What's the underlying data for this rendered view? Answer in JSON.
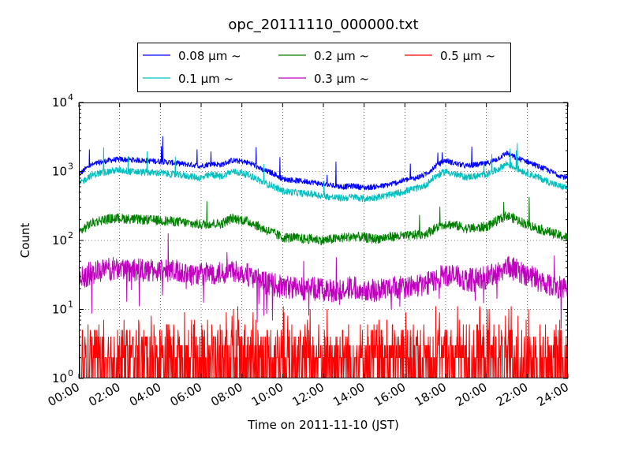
{
  "chart_data": {
    "type": "line",
    "title": "opc_20111110_000000.txt",
    "xlabel": "Time on 2011-11-10 (JST)",
    "ylabel": "Count",
    "yscale": "log",
    "xlim": [
      0,
      24
    ],
    "ylim": [
      1,
      10000
    ],
    "grid": true,
    "legend_position": "top-center",
    "x_unit": "hour",
    "x_ticks": [
      "00:00",
      "02:00",
      "04:00",
      "06:00",
      "08:00",
      "10:00",
      "12:00",
      "14:00",
      "16:00",
      "18:00",
      "20:00",
      "22:00",
      "24:00"
    ],
    "y_ticks": [
      {
        "base": "10",
        "exp": "0",
        "value": 1
      },
      {
        "base": "10",
        "exp": "1",
        "value": 10
      },
      {
        "base": "10",
        "exp": "2",
        "value": 100
      },
      {
        "base": "10",
        "exp": "3",
        "value": 1000
      },
      {
        "base": "10",
        "exp": "4",
        "value": 10000
      }
    ],
    "legend_suffix": "μm ~",
    "series": [
      {
        "name": "0.08",
        "color": "#0000ff",
        "noise": 0.04,
        "x": [
          0,
          0.5,
          1,
          1.5,
          2,
          2.5,
          3,
          4,
          5,
          5.5,
          6,
          6.5,
          7,
          7.5,
          8,
          8.5,
          9,
          9.5,
          10,
          10.5,
          11,
          11.5,
          12,
          12.5,
          13,
          13.5,
          14,
          14.5,
          15,
          15.5,
          16,
          16.5,
          17,
          17.5,
          18,
          18.5,
          19,
          19.5,
          20,
          20.5,
          21,
          21.5,
          22,
          22.5,
          23,
          23.5,
          24
        ],
        "values": [
          900,
          1200,
          1350,
          1450,
          1500,
          1480,
          1450,
          1400,
          1300,
          1250,
          1200,
          1300,
          1250,
          1450,
          1400,
          1300,
          1050,
          950,
          780,
          750,
          720,
          700,
          650,
          620,
          600,
          620,
          580,
          600,
          620,
          680,
          750,
          800,
          900,
          1200,
          1450,
          1300,
          1200,
          1250,
          1300,
          1500,
          1850,
          1550,
          1400,
          1200,
          1050,
          900,
          800
        ]
      },
      {
        "name": "0.1",
        "color": "#00bfbf",
        "noise": 0.05,
        "x": [
          0,
          0.5,
          1,
          1.5,
          2,
          2.5,
          3,
          4,
          5,
          5.5,
          6,
          6.5,
          7,
          7.5,
          8,
          8.5,
          9,
          9.5,
          10,
          10.5,
          11,
          11.5,
          12,
          12.5,
          13,
          13.5,
          14,
          14.5,
          15,
          15.5,
          16,
          16.5,
          17,
          17.5,
          18,
          18.5,
          19,
          19.5,
          20,
          20.5,
          21,
          21.5,
          22,
          22.5,
          23,
          23.5,
          24
        ],
        "values": [
          650,
          850,
          950,
          1000,
          1050,
          1000,
          980,
          950,
          880,
          850,
          800,
          900,
          850,
          1000,
          950,
          850,
          700,
          620,
          520,
          500,
          480,
          470,
          440,
          420,
          410,
          430,
          400,
          420,
          440,
          470,
          520,
          560,
          630,
          850,
          1000,
          900,
          830,
          860,
          900,
          1050,
          1300,
          1100,
          950,
          830,
          720,
          620,
          580
        ]
      },
      {
        "name": "0.2",
        "color": "#008000",
        "noise": 0.07,
        "x": [
          0,
          0.5,
          1,
          1.5,
          2,
          2.5,
          3,
          4,
          5,
          5.5,
          6,
          6.5,
          7,
          7.5,
          8,
          8.5,
          9,
          9.5,
          10,
          10.5,
          11,
          11.5,
          12,
          12.5,
          13,
          13.5,
          14,
          14.5,
          15,
          15.5,
          16,
          16.5,
          17,
          17.5,
          18,
          18.5,
          19,
          19.5,
          20,
          20.5,
          21,
          21.5,
          22,
          22.5,
          23,
          23.5,
          24
        ],
        "values": [
          130,
          170,
          195,
          205,
          210,
          205,
          200,
          195,
          185,
          175,
          170,
          175,
          175,
          210,
          200,
          180,
          150,
          130,
          110,
          110,
          105,
          105,
          100,
          105,
          110,
          115,
          110,
          105,
          110,
          115,
          115,
          120,
          125,
          150,
          175,
          165,
          150,
          150,
          160,
          190,
          230,
          200,
          170,
          150,
          135,
          120,
          110
        ]
      },
      {
        "name": "0.3",
        "color": "#bf00bf",
        "noise": 0.17,
        "x": [
          0,
          0.5,
          1,
          1.5,
          2,
          2.5,
          3,
          4,
          5,
          5.5,
          6,
          6.5,
          7,
          7.5,
          8,
          8.5,
          9,
          9.5,
          10,
          10.5,
          11,
          11.5,
          12,
          12.5,
          13,
          13.5,
          14,
          14.5,
          15,
          15.5,
          16,
          16.5,
          17,
          17.5,
          18,
          18.5,
          19,
          19.5,
          20,
          20.5,
          21,
          21.5,
          22,
          22.5,
          23,
          23.5,
          24
        ],
        "values": [
          27,
          33,
          36,
          38,
          40,
          38,
          37,
          36,
          35,
          33,
          32,
          34,
          33,
          38,
          35,
          30,
          25,
          23,
          21,
          21,
          20,
          20,
          19,
          19,
          20,
          21,
          20,
          19,
          20,
          21,
          21,
          22,
          23,
          27,
          32,
          30,
          27,
          27,
          29,
          34,
          42,
          37,
          32,
          27,
          24,
          21,
          19
        ]
      },
      {
        "name": "0.5",
        "color": "#ff0000",
        "noise": 0,
        "x": [
          0,
          24
        ],
        "values": [
          2,
          2
        ],
        "note_values_range": [
          1,
          10
        ]
      }
    ]
  }
}
